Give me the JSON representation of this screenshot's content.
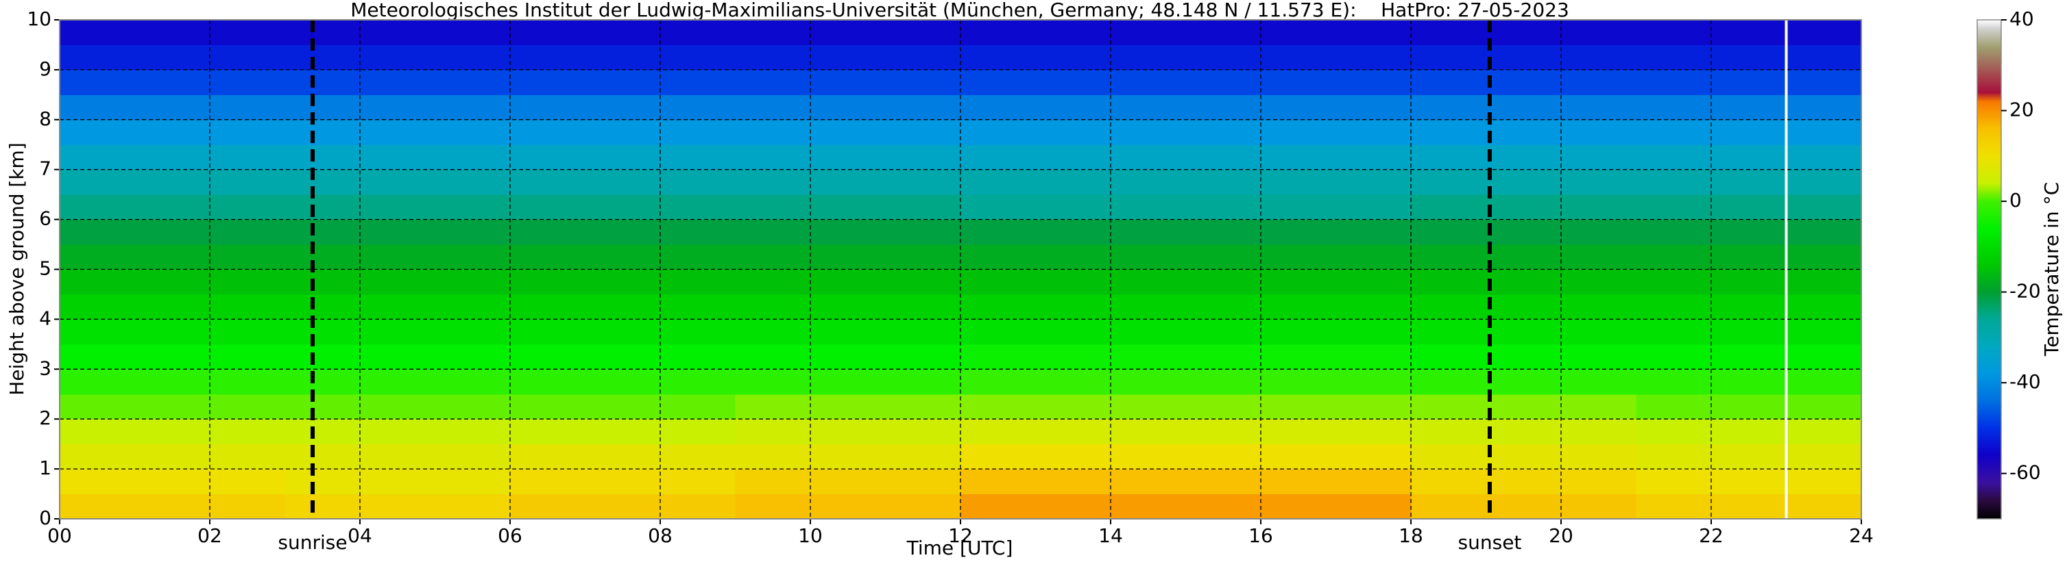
{
  "chart_data": {
    "type": "heatmap",
    "title": "Meteorologisches Institut der Ludwig-Maximilians-Universität (München, Germany; 48.148 N / 11.573 E):    HatPro: 27-05-2023",
    "xlabel": "Time [UTC]",
    "ylabel": "Height above ground [km]",
    "xlim": [
      0,
      24
    ],
    "ylim": [
      0,
      10
    ],
    "xticks": [
      {
        "value": 0,
        "label": "00"
      },
      {
        "value": 2,
        "label": "02"
      },
      {
        "value": 4,
        "label": "04"
      },
      {
        "value": 6,
        "label": "06"
      },
      {
        "value": 8,
        "label": "08"
      },
      10,
      12,
      14,
      16,
      18,
      20,
      22,
      24
    ],
    "yticks": [
      0,
      1,
      2,
      3,
      4,
      5,
      6,
      7,
      8,
      9,
      10
    ],
    "grid": true,
    "x_bins": [
      0,
      3,
      6,
      9,
      12,
      15,
      18,
      21,
      24
    ],
    "y_bins": [
      0,
      0.5,
      1,
      1.5,
      2,
      2.5,
      3,
      3.5,
      4,
      4.5,
      5,
      5.5,
      6,
      6.5,
      7,
      7.5,
      8,
      8.5,
      9,
      9.5,
      10
    ],
    "values": [
      [
        13,
        12,
        14,
        16,
        19,
        19,
        15,
        13
      ],
      [
        10,
        9,
        11,
        13,
        16,
        16,
        12,
        10
      ],
      [
        7,
        7,
        8,
        8,
        10,
        10,
        8,
        7
      ],
      [
        4,
        4,
        4,
        5,
        6,
        6,
        5,
        4
      ],
      [
        1,
        1,
        1,
        2,
        2,
        2,
        2,
        1
      ],
      [
        -2,
        -2,
        -2,
        -2,
        -1,
        -1,
        -2,
        -2
      ],
      [
        -6,
        -6,
        -6,
        -6,
        -5,
        -5,
        -6,
        -6
      ],
      [
        -9,
        -9,
        -9,
        -9,
        -9,
        -9,
        -9,
        -9
      ],
      [
        -12,
        -12,
        -12,
        -12,
        -12,
        -12,
        -12,
        -12
      ],
      [
        -15,
        -15,
        -15,
        -15,
        -15,
        -15,
        -15,
        -15
      ],
      [
        -18,
        -18,
        -18,
        -18,
        -18,
        -18,
        -18,
        -18
      ],
      [
        -21,
        -21,
        -21,
        -21,
        -21,
        -21,
        -21,
        -21
      ],
      [
        -25,
        -25,
        -25,
        -25,
        -26,
        -26,
        -25,
        -25
      ],
      [
        -29,
        -29,
        -29,
        -29,
        -29,
        -29,
        -29,
        -29
      ],
      [
        -33,
        -33,
        -33,
        -33,
        -33,
        -33,
        -33,
        -33
      ],
      [
        -38,
        -38,
        -38,
        -38,
        -38,
        -38,
        -38,
        -38
      ],
      [
        -42,
        -42,
        -42,
        -42,
        -42,
        -42,
        -42,
        -42
      ],
      [
        -48,
        -48,
        -48,
        -48,
        -48,
        -48,
        -48,
        -48
      ],
      [
        -52,
        -52,
        -52,
        -52,
        -52,
        -52,
        -52,
        -52
      ],
      [
        -55,
        -55,
        -55,
        -55,
        -55,
        -55,
        -55,
        -55
      ]
    ],
    "gaps": [
      23
    ],
    "annotations": [
      {
        "text": "sunrise",
        "x": 3.37
      },
      {
        "text": "sunset",
        "x": 19.05
      }
    ],
    "colorbar": {
      "label": "Temperature in °C",
      "lim": [
        -70,
        40
      ],
      "ticks": [
        -60,
        -40,
        -20,
        0,
        20,
        40
      ],
      "stops": [
        {
          "value": -70,
          "color": "#000000"
        },
        {
          "value": -66,
          "color": "#2a0a40"
        },
        {
          "value": -62,
          "color": "#3a10a0"
        },
        {
          "value": -56,
          "color": "#1000c8"
        },
        {
          "value": -50,
          "color": "#0030e8"
        },
        {
          "value": -44,
          "color": "#0070e0"
        },
        {
          "value": -38,
          "color": "#0098e0"
        },
        {
          "value": -32,
          "color": "#00a8c0"
        },
        {
          "value": -26,
          "color": "#00a898"
        },
        {
          "value": -20,
          "color": "#00a030"
        },
        {
          "value": -14,
          "color": "#00c800"
        },
        {
          "value": -6,
          "color": "#00f000"
        },
        {
          "value": 0,
          "color": "#40f000"
        },
        {
          "value": 4,
          "color": "#c8f000"
        },
        {
          "value": 10,
          "color": "#f0e000"
        },
        {
          "value": 16,
          "color": "#f8c000"
        },
        {
          "value": 22,
          "color": "#f87800"
        },
        {
          "value": 24,
          "color": "#a8103a"
        },
        {
          "value": 34,
          "color": "#a0a070"
        },
        {
          "value": 38,
          "color": "#d0d0d0"
        },
        {
          "value": 40,
          "color": "#ffffff"
        }
      ]
    }
  }
}
